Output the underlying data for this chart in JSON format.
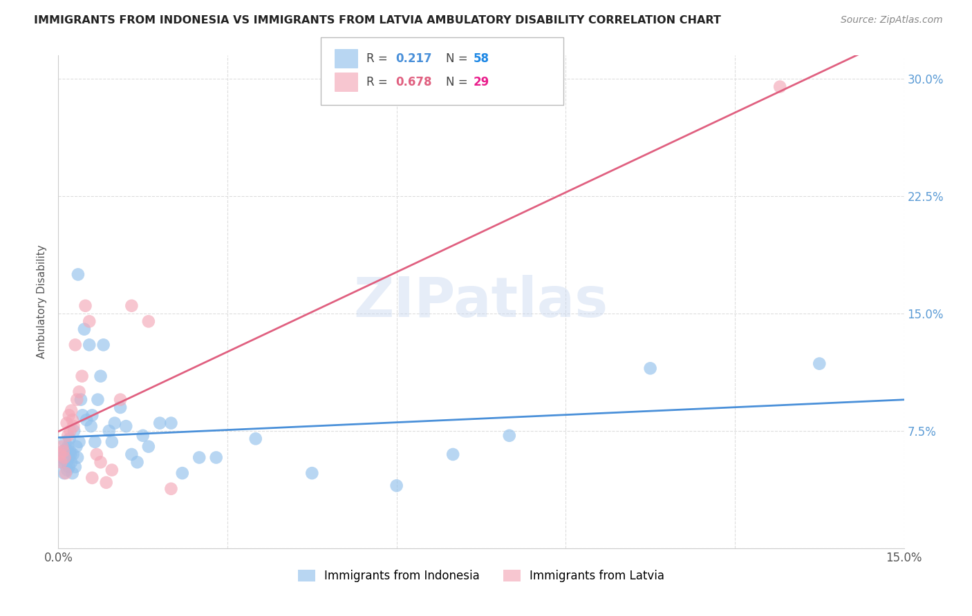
{
  "title": "IMMIGRANTS FROM INDONESIA VS IMMIGRANTS FROM LATVIA AMBULATORY DISABILITY CORRELATION CHART",
  "source": "Source: ZipAtlas.com",
  "ylabel": "Ambulatory Disability",
  "xlim": [
    0.0,
    0.15
  ],
  "ylim": [
    0.0,
    0.315
  ],
  "xticks": [
    0.0,
    0.03,
    0.06,
    0.09,
    0.12,
    0.15
  ],
  "xticklabels": [
    "0.0%",
    "",
    "",
    "",
    "",
    "15.0%"
  ],
  "yticks": [
    0.0,
    0.075,
    0.15,
    0.225,
    0.3
  ],
  "yticklabels": [
    "",
    "7.5%",
    "15.0%",
    "22.5%",
    "30.0%"
  ],
  "series1_label": "Immigrants from Indonesia",
  "series2_label": "Immigrants from Latvia",
  "series1_color": "#92C1EC",
  "series2_color": "#F4A8B8",
  "series1_R": 0.217,
  "series1_N": 58,
  "series2_R": 0.678,
  "series2_N": 29,
  "legend_N1_color": "#1E88E5",
  "legend_N2_color": "#E91E8C",
  "trendline1_color": "#4A90D9",
  "trendline2_color": "#E06080",
  "watermark": "ZIPatlas",
  "background_color": "#FFFFFF",
  "grid_color": "#DDDDDD",
  "indonesia_x": [
    0.0003,
    0.0005,
    0.0007,
    0.0008,
    0.001,
    0.001,
    0.0012,
    0.0013,
    0.0014,
    0.0015,
    0.0016,
    0.0017,
    0.0018,
    0.0019,
    0.002,
    0.0021,
    0.0022,
    0.0023,
    0.0025,
    0.0026,
    0.0028,
    0.003,
    0.0032,
    0.0034,
    0.0035,
    0.0037,
    0.004,
    0.0043,
    0.0046,
    0.005,
    0.0055,
    0.0058,
    0.006,
    0.0065,
    0.007,
    0.0075,
    0.008,
    0.009,
    0.0095,
    0.01,
    0.011,
    0.012,
    0.013,
    0.014,
    0.015,
    0.016,
    0.018,
    0.02,
    0.022,
    0.025,
    0.028,
    0.035,
    0.045,
    0.06,
    0.07,
    0.08,
    0.105,
    0.135
  ],
  "indonesia_y": [
    0.055,
    0.06,
    0.058,
    0.062,
    0.048,
    0.055,
    0.068,
    0.06,
    0.063,
    0.055,
    0.05,
    0.065,
    0.058,
    0.052,
    0.07,
    0.062,
    0.06,
    0.055,
    0.048,
    0.06,
    0.075,
    0.052,
    0.065,
    0.058,
    0.175,
    0.068,
    0.095,
    0.085,
    0.14,
    0.082,
    0.13,
    0.078,
    0.085,
    0.068,
    0.095,
    0.11,
    0.13,
    0.075,
    0.068,
    0.08,
    0.09,
    0.078,
    0.06,
    0.055,
    0.072,
    0.065,
    0.08,
    0.08,
    0.048,
    0.058,
    0.058,
    0.07,
    0.048,
    0.04,
    0.06,
    0.072,
    0.115,
    0.118
  ],
  "latvia_x": [
    0.0003,
    0.0005,
    0.0007,
    0.0009,
    0.0011,
    0.0013,
    0.0015,
    0.0017,
    0.0019,
    0.0021,
    0.0023,
    0.0025,
    0.0027,
    0.003,
    0.0033,
    0.0037,
    0.0042,
    0.0048,
    0.0055,
    0.006,
    0.0068,
    0.0075,
    0.0085,
    0.0095,
    0.011,
    0.013,
    0.016,
    0.02,
    0.128
  ],
  "latvia_y": [
    0.06,
    0.055,
    0.065,
    0.062,
    0.058,
    0.048,
    0.08,
    0.072,
    0.085,
    0.075,
    0.088,
    0.082,
    0.078,
    0.13,
    0.095,
    0.1,
    0.11,
    0.155,
    0.145,
    0.045,
    0.06,
    0.055,
    0.042,
    0.05,
    0.095,
    0.155,
    0.145,
    0.038,
    0.295
  ]
}
